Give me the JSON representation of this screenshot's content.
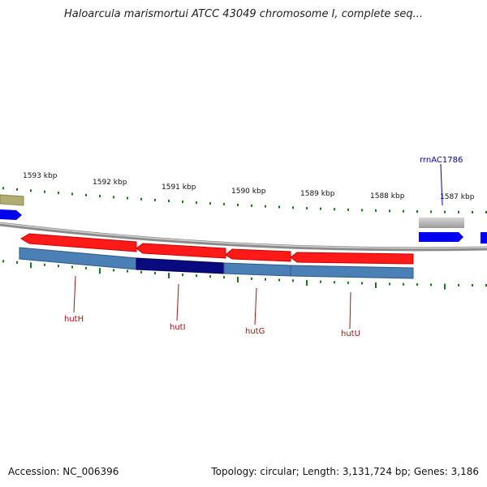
{
  "title": "Haloarcula marismortui ATCC 43049 chromosome I, complete seq...",
  "footer": {
    "accession": "Accession: NC_006396",
    "summary": "Topology: circular; Length: 3,131,724 bp; Genes: 3,186"
  },
  "ruler_labels": [
    "1593 kbp",
    "1592 kbp",
    "1591 kbp",
    "1590 kbp",
    "1589 kbp",
    "1588 kbp",
    "1587 kbp"
  ],
  "gene_labels": [
    "hutH",
    "hutI",
    "hutG",
    "hutU"
  ],
  "feature_labels": [
    "rrnAC1786"
  ],
  "colors": {
    "cds_red": "#ff1a1a",
    "gene_blue": "#4a80b5",
    "highlight_navy": "#0a0a80",
    "arrow_blue": "#0000ee",
    "backbone_gray": "#8a8a8a",
    "tick_green": "#1a7a1a",
    "olive": "#b0ad72",
    "label_red": "#aa1111",
    "label_blue": "#0000aa"
  }
}
